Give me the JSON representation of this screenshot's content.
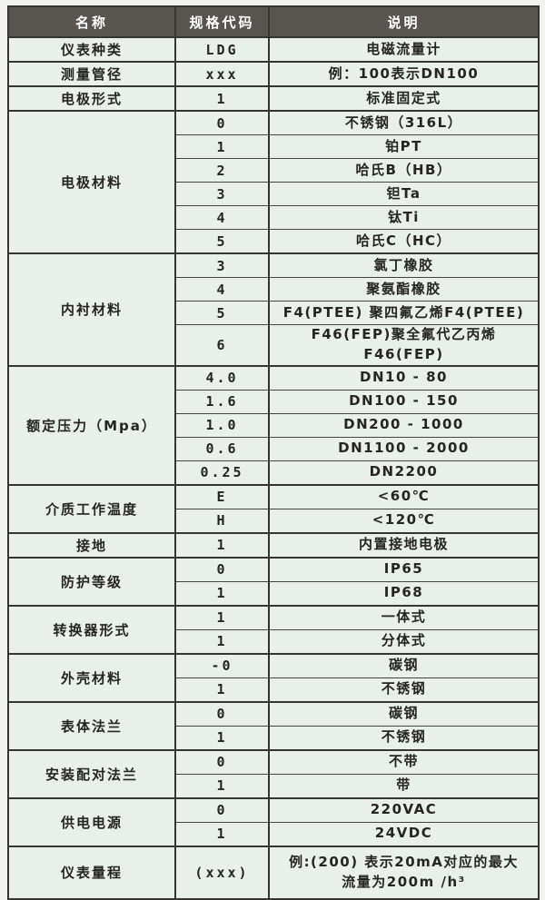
{
  "colors": {
    "header_bg": "#585450",
    "header_text": "#ffffff",
    "body_bg": "#e9efe9",
    "border": "#37352f",
    "text": "#262522",
    "page_bg": "#f2f3ef"
  },
  "table": {
    "header": {
      "name": "名称",
      "code": "规格代码",
      "desc": "说明"
    },
    "groups": [
      {
        "name": "仪表种类",
        "rows": [
          {
            "code": "LDG",
            "desc": "电磁流量计"
          }
        ]
      },
      {
        "name": "测量管径",
        "rows": [
          {
            "code": "xxx",
            "desc": "例：100表示DN100"
          }
        ]
      },
      {
        "name": "电极形式",
        "rows": [
          {
            "code": "1",
            "desc": "标准固定式"
          }
        ]
      },
      {
        "name": "电极材料",
        "rows": [
          {
            "code": "0",
            "desc": "不锈钢（316L）"
          },
          {
            "code": "1",
            "desc": "铂PT"
          },
          {
            "code": "2",
            "desc": "哈氏B（HB）"
          },
          {
            "code": "3",
            "desc": "钽Ta"
          },
          {
            "code": "4",
            "desc": "钛Ti"
          },
          {
            "code": "5",
            "desc": "哈氏C（HC）"
          }
        ]
      },
      {
        "name": "内衬材料",
        "rows": [
          {
            "code": "3",
            "desc": "氯丁橡胶"
          },
          {
            "code": "4",
            "desc": "聚氨酯橡胶"
          },
          {
            "code": "5",
            "desc": "F4(PTEE) 聚四氟乙烯F4(PTEE)"
          },
          {
            "code": "6",
            "desc": "F46(FEP)聚全氟代乙丙烯F46(FEP)"
          }
        ]
      },
      {
        "name": "额定压力（Mpa）",
        "rows": [
          {
            "code": "4.0",
            "desc": "DN10 - 80"
          },
          {
            "code": "1.6",
            "desc": "DN100 - 150"
          },
          {
            "code": "1.0",
            "desc": "DN200 - 1000"
          },
          {
            "code": "0.6",
            "desc": "DN1100 - 2000"
          },
          {
            "code": "0.25",
            "desc": "DN2200"
          }
        ]
      },
      {
        "name": "介质工作温度",
        "rows": [
          {
            "code": "E",
            "desc": "<60℃"
          },
          {
            "code": "H",
            "desc": "<120℃"
          }
        ]
      },
      {
        "name": "接地",
        "rows": [
          {
            "code": "1",
            "desc": "内置接地电极"
          }
        ]
      },
      {
        "name": "防护等级",
        "rows": [
          {
            "code": "0",
            "desc": "IP65"
          },
          {
            "code": "1",
            "desc": "IP68"
          }
        ]
      },
      {
        "name": "转换器形式",
        "rows": [
          {
            "code": "1",
            "desc": "一体式"
          },
          {
            "code": "1",
            "desc": "分体式"
          }
        ]
      },
      {
        "name": "外壳材料",
        "rows": [
          {
            "code": "-0",
            "desc": "碳钢"
          },
          {
            "code": "1",
            "desc": "不锈钢"
          }
        ]
      },
      {
        "name": "表体法兰",
        "rows": [
          {
            "code": "0",
            "desc": "碳钢"
          },
          {
            "code": "1",
            "desc": "不锈钢"
          }
        ]
      },
      {
        "name": "安装配对法兰",
        "rows": [
          {
            "code": "0",
            "desc": "不带"
          },
          {
            "code": "1",
            "desc": "带"
          }
        ]
      },
      {
        "name": "供电电源",
        "rows": [
          {
            "code": "0",
            "desc": "220VAC"
          },
          {
            "code": "1",
            "desc": "24VDC"
          }
        ]
      },
      {
        "name": "仪表量程",
        "tall": true,
        "rows": [
          {
            "code": "(xxx)",
            "desc": "例:(200) 表示20mA对应的最大\n流量为200m /h³"
          }
        ]
      }
    ]
  }
}
